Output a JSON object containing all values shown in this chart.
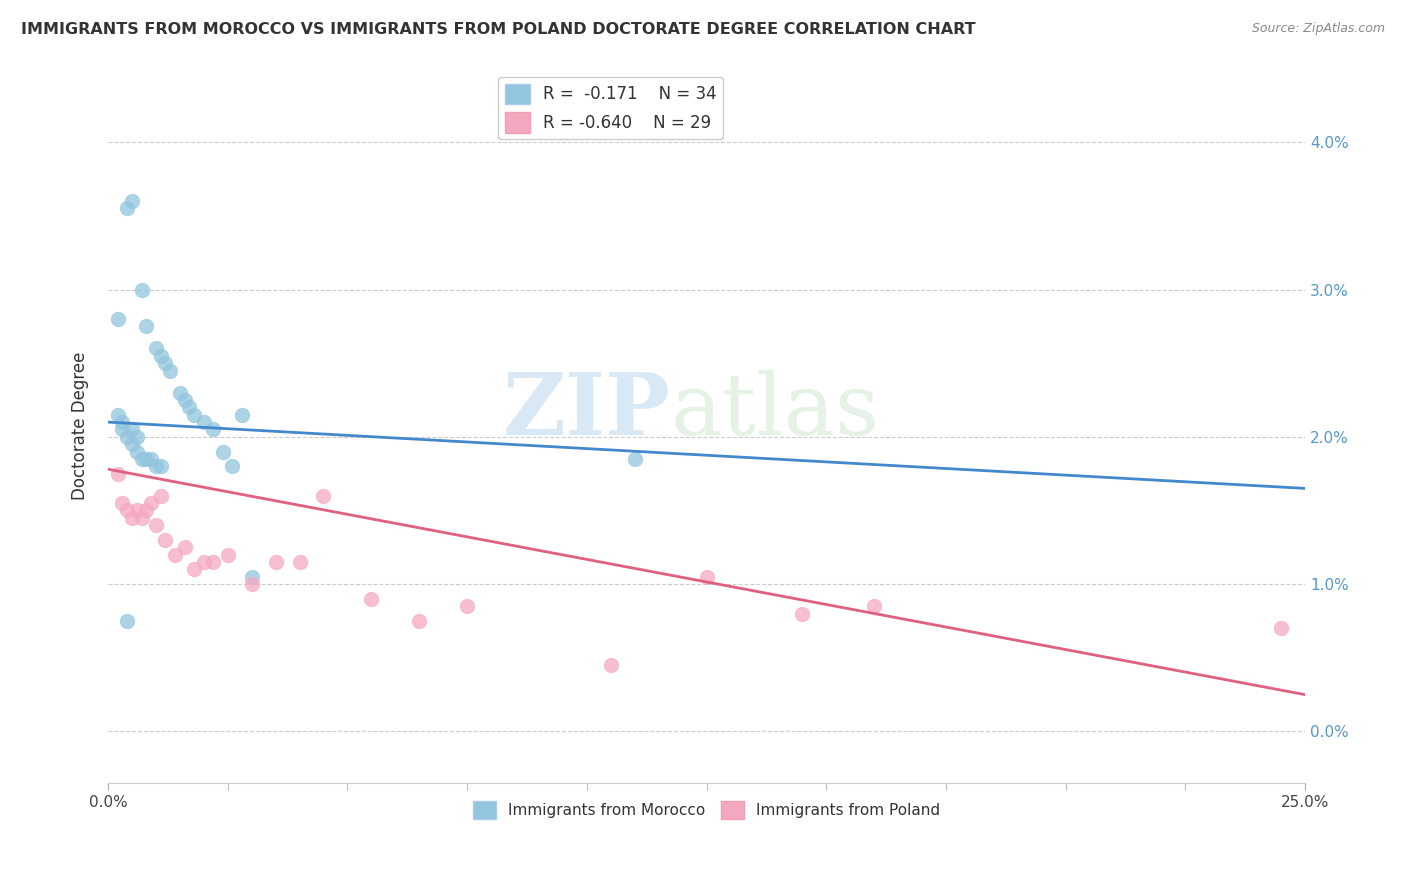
{
  "title": "IMMIGRANTS FROM MOROCCO VS IMMIGRANTS FROM POLAND DOCTORATE DEGREE CORRELATION CHART",
  "source": "Source: ZipAtlas.com",
  "ylabel": "Doctorate Degree",
  "xlim": [
    0.0,
    25.0
  ],
  "ylim": [
    -0.35,
    4.5
  ],
  "blue_R": "-0.171",
  "blue_N": "34",
  "pink_R": "-0.640",
  "pink_N": "29",
  "blue_color": "#92c5de",
  "pink_color": "#f4a8c0",
  "blue_line_color": "#4488cc",
  "pink_line_color": "#e06080",
  "background_color": "#ffffff",
  "grid_color": "#cccccc",
  "watermark_zip": "ZIP",
  "watermark_atlas": "atlas",
  "morocco_x": [
    0.4,
    0.5,
    0.7,
    0.8,
    1.0,
    1.1,
    1.2,
    1.3,
    1.5,
    1.6,
    1.7,
    1.8,
    2.0,
    2.2,
    2.4,
    2.8,
    0.2,
    0.3,
    0.4,
    0.5,
    0.6,
    0.7,
    0.8,
    0.9,
    1.0,
    1.1,
    0.2,
    0.3,
    0.5,
    0.6,
    2.6,
    0.4,
    3.0,
    11.0
  ],
  "morocco_y": [
    3.55,
    3.6,
    3.0,
    2.75,
    2.6,
    2.55,
    2.5,
    2.45,
    2.3,
    2.25,
    2.2,
    2.15,
    2.1,
    2.05,
    1.9,
    2.15,
    2.8,
    2.1,
    2.0,
    1.95,
    1.9,
    1.85,
    1.85,
    1.85,
    1.8,
    1.8,
    2.15,
    2.05,
    2.05,
    2.0,
    1.8,
    0.75,
    1.05,
    1.85
  ],
  "poland_x": [
    0.2,
    0.3,
    0.4,
    0.5,
    0.6,
    0.7,
    0.8,
    0.9,
    1.0,
    1.1,
    1.2,
    1.4,
    1.6,
    1.8,
    2.0,
    2.2,
    2.5,
    3.0,
    3.5,
    4.0,
    4.5,
    5.5,
    6.5,
    7.5,
    10.5,
    12.5,
    14.5,
    16.0,
    24.5
  ],
  "poland_y": [
    1.75,
    1.55,
    1.5,
    1.45,
    1.5,
    1.45,
    1.5,
    1.55,
    1.4,
    1.6,
    1.3,
    1.2,
    1.25,
    1.1,
    1.15,
    1.15,
    1.2,
    1.0,
    1.15,
    1.15,
    1.6,
    0.9,
    0.75,
    0.85,
    0.45,
    1.05,
    0.8,
    0.85,
    0.7
  ],
  "ytick_vals": [
    0.0,
    1.0,
    2.0,
    3.0,
    4.0
  ],
  "ytick_labels": [
    "0.0%",
    "1.0%",
    "2.0%",
    "3.0%",
    "4.0%"
  ]
}
